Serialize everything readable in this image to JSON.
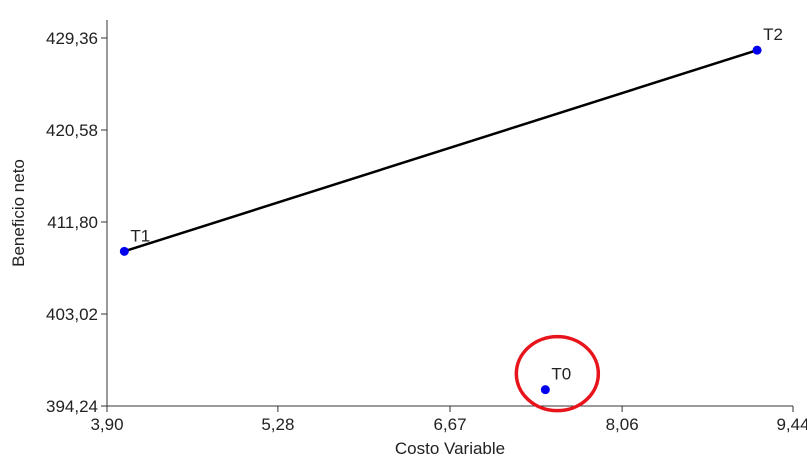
{
  "chart_data": {
    "type": "scatter",
    "title": "",
    "xlabel": "Costo Variable",
    "ylabel": "Beneficio neto",
    "xlim": [
      3.9,
      9.44
    ],
    "ylim": [
      394.24,
      429.36
    ],
    "xticks": [
      "3,90",
      "5,28",
      "6,67",
      "8,06",
      "9,44"
    ],
    "xtick_values": [
      3.9,
      5.28,
      6.67,
      8.06,
      9.44
    ],
    "yticks": [
      "394,24",
      "403,02",
      "411,80",
      "420,58",
      "429,36"
    ],
    "ytick_values": [
      394.24,
      403.02,
      411.8,
      420.58,
      429.36
    ],
    "points": [
      {
        "label": "T1",
        "x": 4.04,
        "y": 409.0
      },
      {
        "label": "T2",
        "x": 9.15,
        "y": 428.2
      },
      {
        "label": "T0",
        "x": 7.44,
        "y": 395.8
      }
    ],
    "frontier": [
      "T1",
      "T2"
    ],
    "point_color": "#0000ee",
    "line_color": "#000000",
    "highlight": {
      "label": "T0",
      "color": "#e8141b"
    }
  }
}
